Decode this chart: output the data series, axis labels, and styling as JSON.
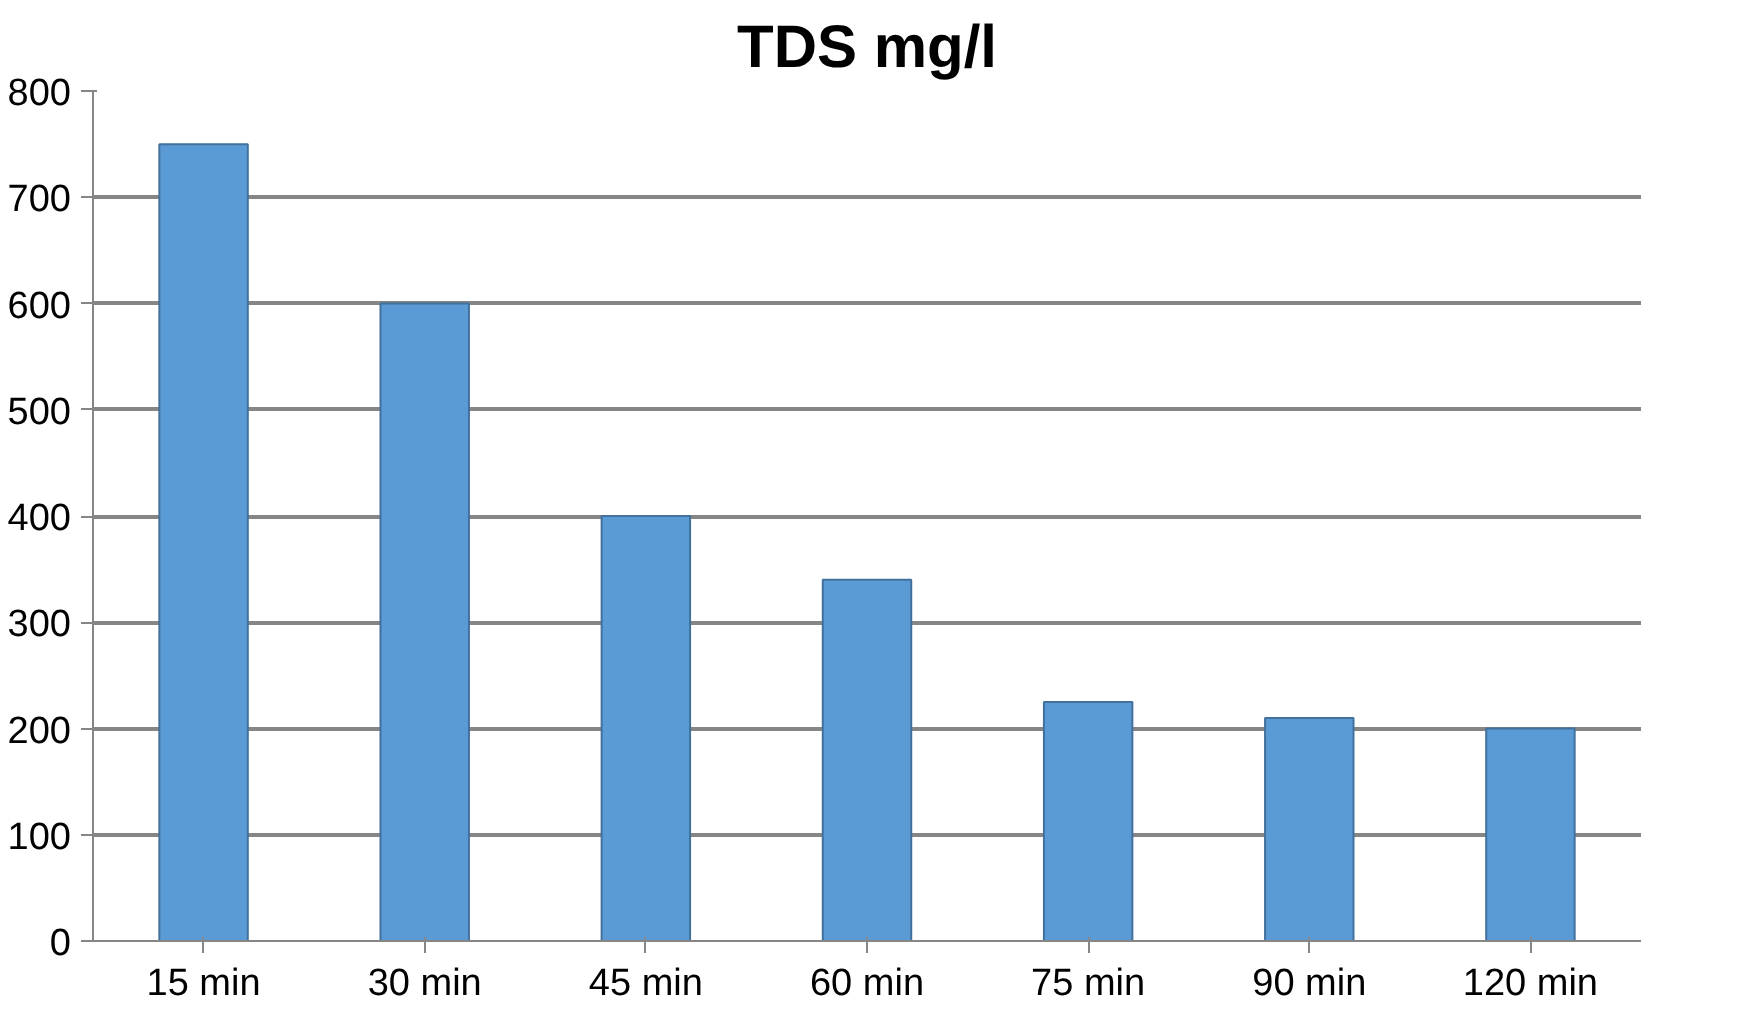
{
  "chart_data": {
    "type": "bar",
    "title": "TDS mg/l",
    "categories": [
      "15 min",
      "30 min",
      "45 min",
      "60 min",
      "75 min",
      "90 min",
      "120 min"
    ],
    "values": [
      750,
      600,
      400,
      340,
      225,
      210,
      200
    ],
    "color": "#5b9bd5",
    "ylim": [
      0,
      800
    ],
    "yticks": [
      0,
      100,
      200,
      300,
      400,
      500,
      600,
      700,
      800
    ],
    "grid": "y"
  }
}
